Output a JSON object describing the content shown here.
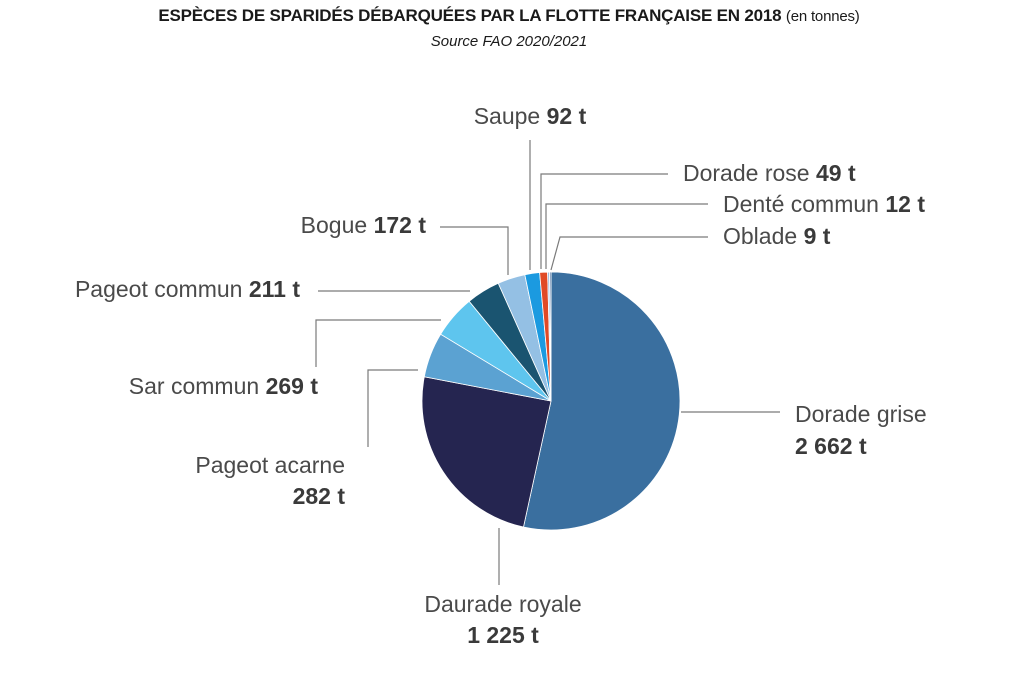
{
  "title": "ESPÈCES DE SPARIDÉS DÉBARQUÉES PAR LA FLOTTE FRANÇAISE EN 2018",
  "title_suffix": "(en tonnes)",
  "source": "Source FAO 2020/2021",
  "chart_data": {
    "type": "pie",
    "title": "ESPÈCES DE SPARIDÉS DÉBARQUÉES PAR LA FLOTTE FRANÇAISE EN 2018 (en tonnes)",
    "unit": "t",
    "slices": [
      {
        "name": "Dorade grise",
        "value": 2662,
        "value_label": "2 662 t",
        "color": "#3a6f9f"
      },
      {
        "name": "Daurade royale",
        "value": 1225,
        "value_label": "1 225 t",
        "color": "#252550"
      },
      {
        "name": "Pageot acarne",
        "value": 282,
        "value_label": "282 t",
        "color": "#5ba2d2"
      },
      {
        "name": "Sar commun",
        "value": 269,
        "value_label": "269 t",
        "color": "#5ec5ee"
      },
      {
        "name": "Pageot commun",
        "value": 211,
        "value_label": "211 t",
        "color": "#1a5470"
      },
      {
        "name": "Bogue",
        "value": 172,
        "value_label": "172 t",
        "color": "#94c0e4"
      },
      {
        "name": "Saupe",
        "value": 92,
        "value_label": "92 t",
        "color": "#1b9ae0"
      },
      {
        "name": "Dorade rose",
        "value": 49,
        "value_label": "49 t",
        "color": "#e04a26"
      },
      {
        "name": "Denté commun",
        "value": 12,
        "value_label": "12 t",
        "color": "#9bbce0"
      },
      {
        "name": "Oblade",
        "value": 9,
        "value_label": "9 t",
        "color": "#4b6fa0"
      }
    ]
  }
}
